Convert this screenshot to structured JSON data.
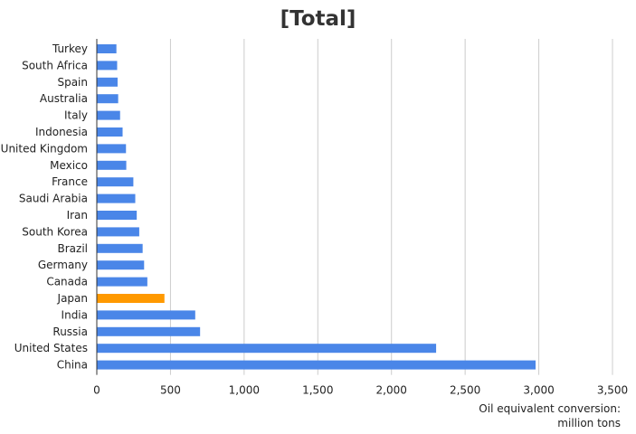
{
  "chart_data": {
    "type": "bar",
    "orientation": "horizontal",
    "title": "[Total]",
    "xlabel_lines": [
      "Oil equivalent conversion:",
      "million tons"
    ],
    "xlim": [
      0,
      3500
    ],
    "xticks": [
      0,
      500,
      1000,
      1500,
      2000,
      2500,
      3000,
      3500
    ],
    "xtick_labels": [
      "0",
      "500",
      "1,000",
      "1,500",
      "2,000",
      "2,500",
      "3,000",
      "3,500"
    ],
    "grid": "vertical",
    "categories": [
      "Turkey",
      "South Africa",
      "Spain",
      "Australia",
      "Italy",
      "Indonesia",
      "United Kingdom",
      "Mexico",
      "France",
      "Saudi Arabia",
      "Iran",
      "South Korea",
      "Brazil",
      "Germany",
      "Canada",
      "Japan",
      "India",
      "Russia",
      "United States",
      "China"
    ],
    "values": [
      130,
      135,
      138,
      142,
      155,
      172,
      195,
      197,
      245,
      258,
      268,
      285,
      308,
      318,
      340,
      456,
      665,
      698,
      2300,
      2975
    ],
    "highlight": "Japan",
    "colors": {
      "bar": "#4a86e8",
      "highlight": "#ff9900",
      "grid": "#cccccc",
      "axis": "#333333"
    }
  }
}
